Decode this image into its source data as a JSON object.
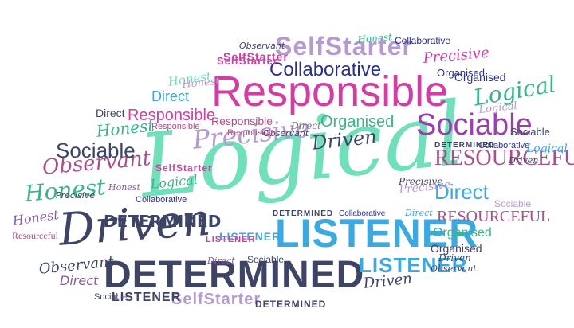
{
  "colors": {
    "pink": "#d13fa4",
    "mint": "#6fe0b9",
    "teal": "#3bb38a",
    "blue": "#3ca9e0",
    "navy": "#2a2f8c",
    "slate": "#3d4466",
    "purple": "#8a5aa8",
    "lavender": "#b59ad2",
    "violet": "#9b3fb0",
    "mauve": "#a8508a",
    "grey": "#777777"
  },
  "words": [
    {
      "text": "Logical",
      "color": "mint"
    },
    {
      "text": "Responsible",
      "color": "pink"
    },
    {
      "text": "LISTENER",
      "color": "blue"
    },
    {
      "text": "DETERMINED",
      "color": "slate"
    },
    {
      "text": "Driven",
      "color": "slate"
    },
    {
      "text": "SelfStarter",
      "color": "lavender"
    },
    {
      "text": "Collaborative",
      "color": "navy"
    },
    {
      "text": "Sociable",
      "color": "violet"
    },
    {
      "text": "Precisive",
      "color": "lavender"
    },
    {
      "text": "Observant",
      "color": "mauve"
    },
    {
      "text": "Honest",
      "color": "teal"
    },
    {
      "text": "Sociable",
      "color": "slate"
    },
    {
      "text": "RESOURCEFUL",
      "color": "mauve"
    },
    {
      "text": "Direct",
      "color": "blue"
    },
    {
      "text": "Responsible",
      "color": "pink"
    },
    {
      "text": "Organised",
      "color": "teal"
    },
    {
      "text": "Driven",
      "color": "slate"
    },
    {
      "text": "Logical",
      "color": "teal"
    },
    {
      "text": "Direct",
      "color": "blue"
    },
    {
      "text": "DETERMINED",
      "color": "slate"
    },
    {
      "text": "LISTENER",
      "color": "blue"
    },
    {
      "text": "RESOURCEFUL",
      "color": "mauve"
    },
    {
      "text": "Organised",
      "color": "teal"
    },
    {
      "text": "SelfStarter",
      "color": "lavender"
    },
    {
      "text": "Collaborative",
      "color": "navy"
    },
    {
      "text": "SelfStarter",
      "color": "pink"
    },
    {
      "text": "Precisive",
      "color": "pink"
    },
    {
      "text": "Organised",
      "color": "navy"
    },
    {
      "text": "Honest",
      "color": "mint"
    },
    {
      "text": "Collaborative",
      "color": "navy"
    },
    {
      "text": "LISTENER",
      "color": "slate"
    },
    {
      "text": "Observant",
      "color": "slate"
    },
    {
      "text": "Honest",
      "color": "teal"
    },
    {
      "text": "Direct",
      "color": "purple"
    },
    {
      "text": "Honest",
      "color": "purple"
    },
    {
      "text": "Logical",
      "color": "teal"
    },
    {
      "text": "Sociable",
      "color": "slate"
    },
    {
      "text": "Precisive",
      "color": "slate"
    },
    {
      "text": "Driven",
      "color": "slate"
    },
    {
      "text": "Observant",
      "color": "slate"
    },
    {
      "text": "Direct",
      "color": "slate"
    },
    {
      "text": "Sociable",
      "color": "slate"
    },
    {
      "text": "LISTENER",
      "color": "blue"
    },
    {
      "text": "SelfStarter",
      "color": "pink"
    },
    {
      "text": "DETERMINED",
      "color": "slate"
    },
    {
      "text": "Organised",
      "color": "slate"
    },
    {
      "text": "Resourceful",
      "color": "mauve"
    },
    {
      "text": "Responsible",
      "color": "mauve"
    },
    {
      "text": "Direct",
      "color": "grey"
    },
    {
      "text": "Logical",
      "color": "blue"
    },
    {
      "text": "Collaborative",
      "color": "navy"
    },
    {
      "text": "Honest",
      "color": "lavender"
    },
    {
      "text": "Sociable",
      "color": "lavender"
    },
    {
      "text": "Precisive",
      "color": "lavender"
    },
    {
      "text": "DETERMINED",
      "color": "slate"
    },
    {
      "text": "Driven",
      "color": "slate"
    },
    {
      "text": "Direct",
      "color": "blue"
    },
    {
      "text": "Sociable",
      "color": "slate"
    },
    {
      "text": "Collaborative",
      "color": "navy"
    },
    {
      "text": "Logical",
      "color": "lavender"
    },
    {
      "text": "Responsible",
      "color": "mauve"
    },
    {
      "text": "Observant",
      "color": "slate"
    },
    {
      "text": "Honest",
      "color": "purple"
    },
    {
      "text": "SelfStarter",
      "color": "pink"
    },
    {
      "text": "DETERMINED",
      "color": "slate"
    },
    {
      "text": "LISTENER",
      "color": "pink"
    },
    {
      "text": "Organised",
      "color": "navy"
    },
    {
      "text": "Direct",
      "color": "purple"
    },
    {
      "text": "Honest",
      "color": "teal"
    },
    {
      "text": "Precisive",
      "color": "slate"
    },
    {
      "text": "Observant",
      "color": "slate"
    },
    {
      "text": "Driven",
      "color": "slate"
    },
    {
      "text": "Responsible",
      "color": "mauve"
    }
  ]
}
